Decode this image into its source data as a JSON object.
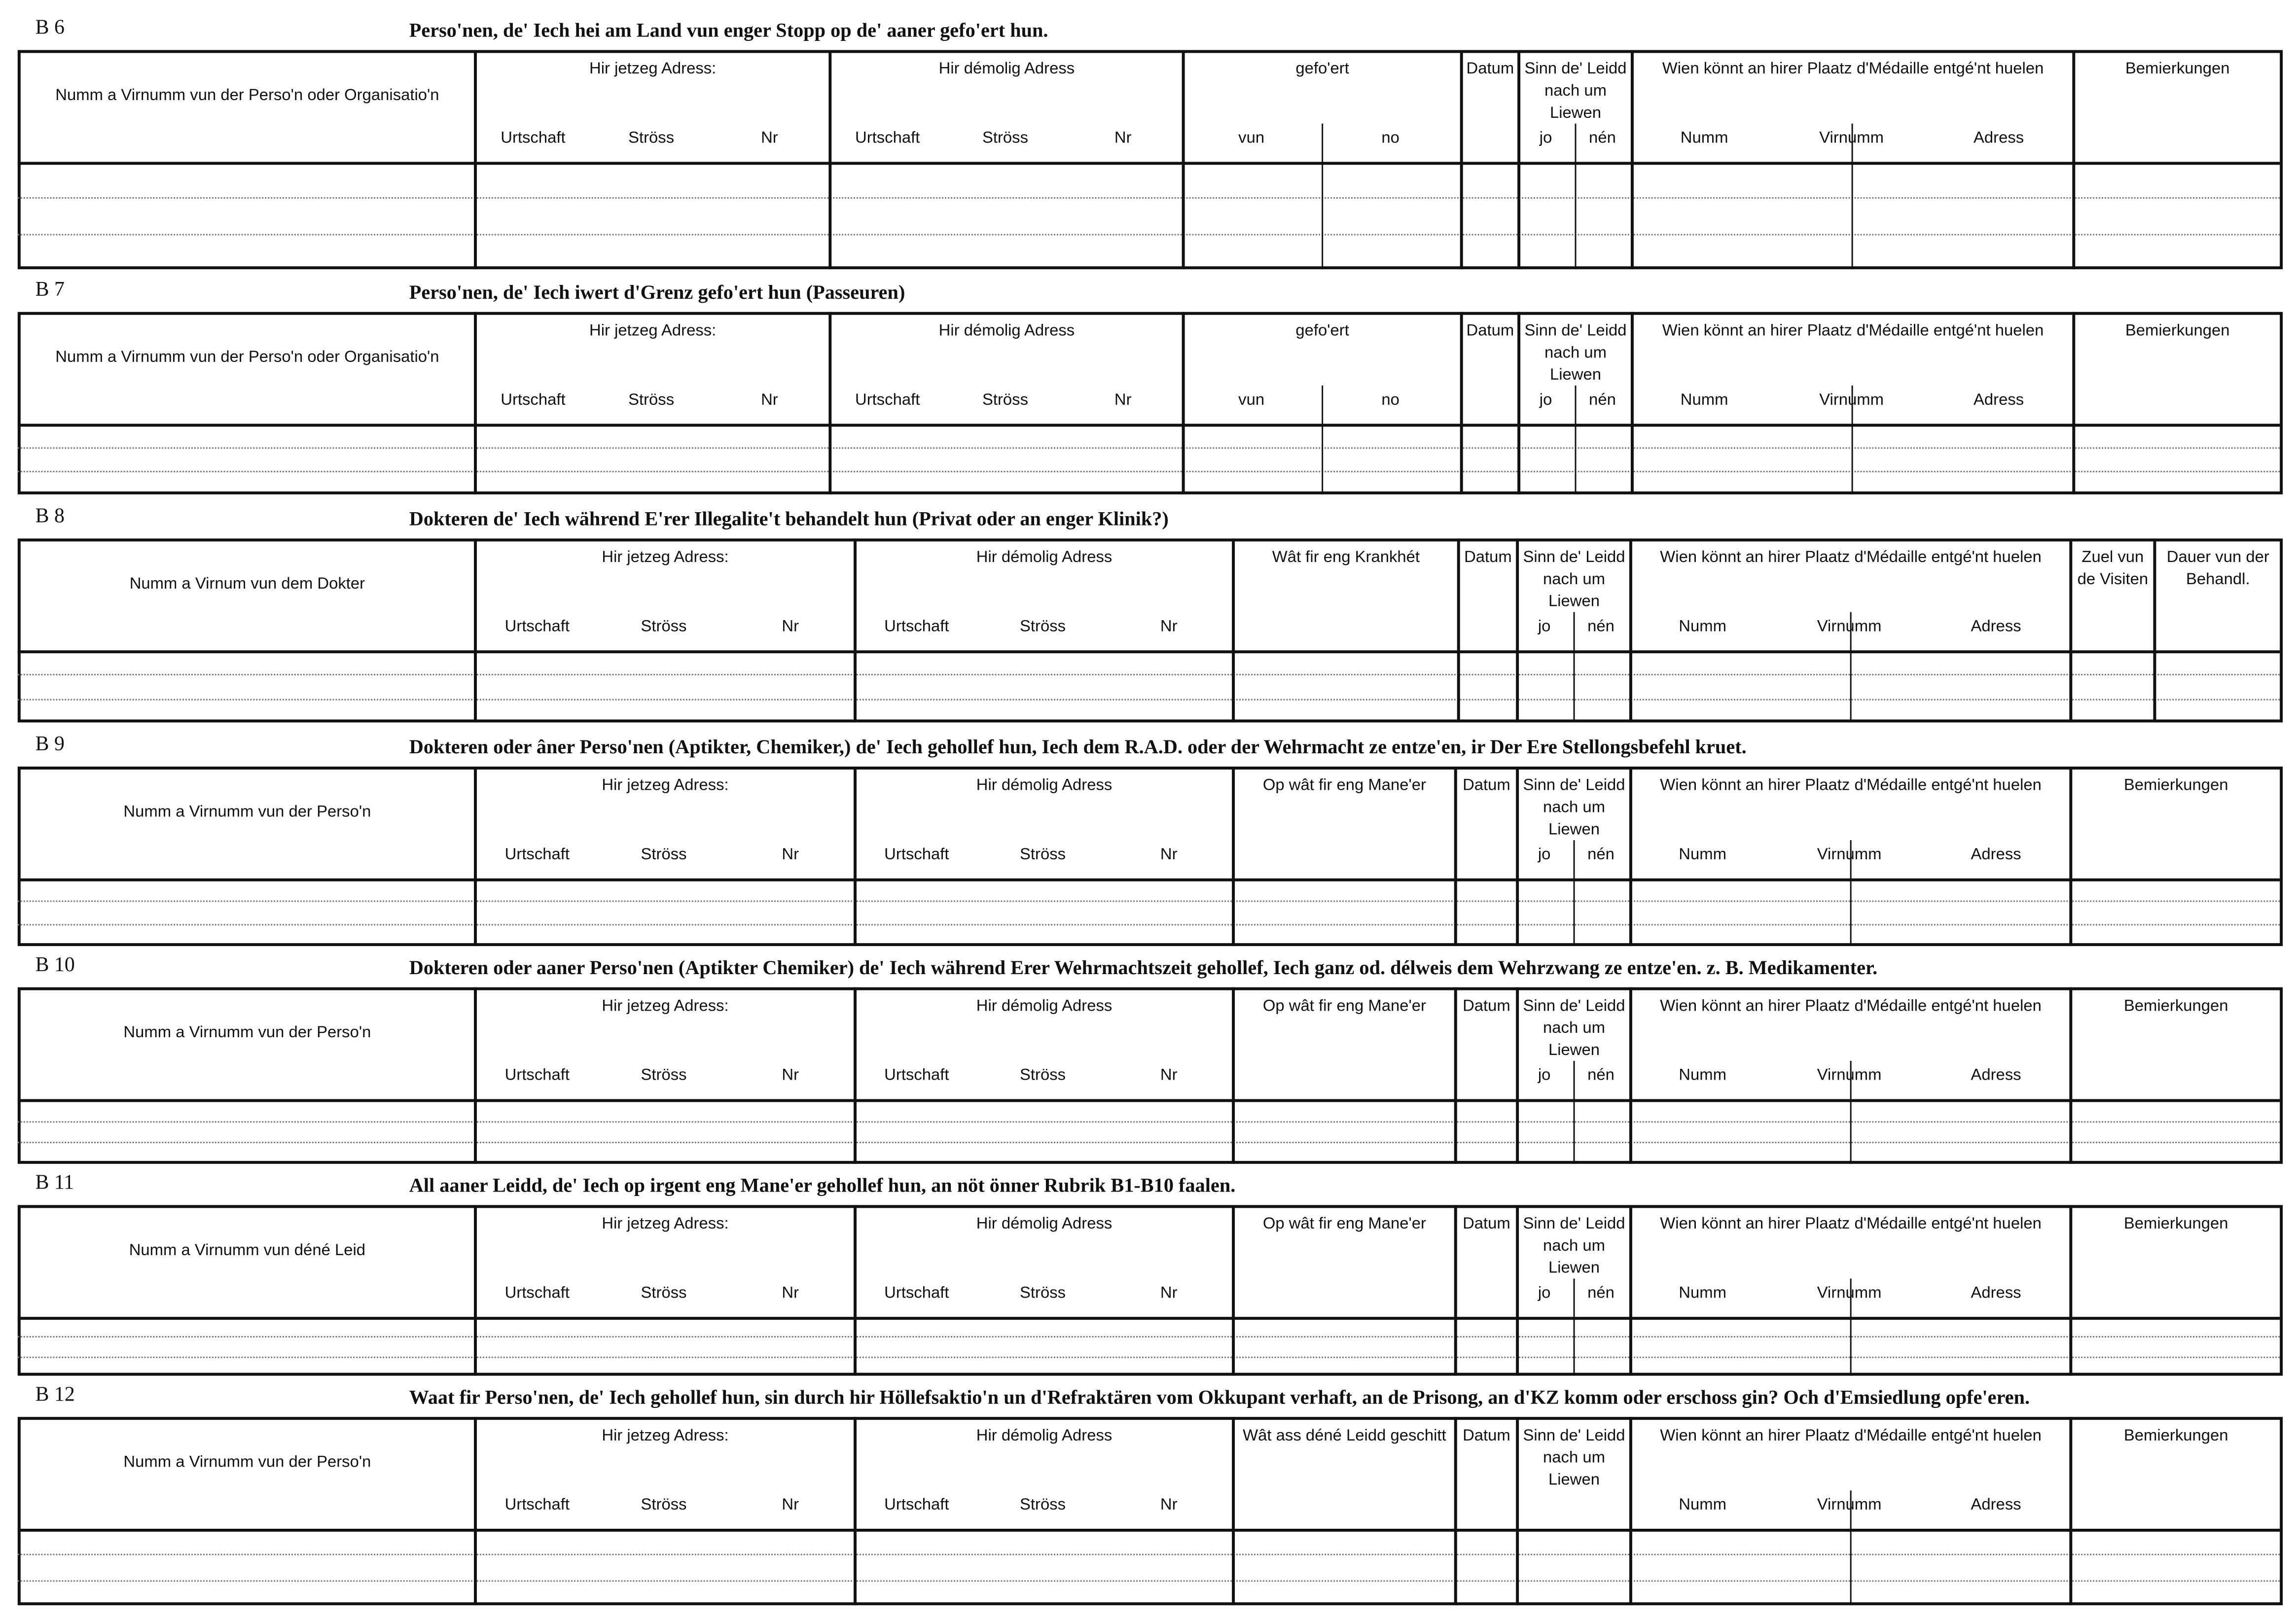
{
  "sections": [
    {
      "code": "B 6",
      "title": "Perso'nen, de' Iech hei am Land vun enger Stopp op de' aaner gefo'ert hun.",
      "columns": [
        {
          "header": "Numm a Virnumm vun der Perso'n oder Organisatio'n"
        },
        {
          "header": "Hir jetzeg Adress:",
          "subs": [
            "Urtschaft",
            "Ströss",
            "Nr"
          ]
        },
        {
          "header": "Hir démolig Adress",
          "subs": [
            "Urtschaft",
            "Ströss",
            "Nr"
          ]
        },
        {
          "header": "gefo'ert",
          "subs": [
            "vun",
            "no"
          ]
        },
        {
          "header": "Datum"
        },
        {
          "header": "Sinn de' Leidd nach um Liewen",
          "subs": [
            "jo",
            "nén"
          ]
        },
        {
          "header": "Wien könnt an hirer Plaatz d'Médaille entgé'nt huelen",
          "subs": [
            "Numm",
            "Virnumm",
            "Adress"
          ]
        },
        {
          "header": "Bemierkungen"
        }
      ]
    },
    {
      "code": "B 7",
      "title": "Perso'nen, de' Iech iwert d'Grenz gefo'ert hun (Passeuren)",
      "columns": [
        {
          "header": "Numm a Virnumm vun der Perso'n oder Organisatio'n"
        },
        {
          "header": "Hir jetzeg Adress:",
          "subs": [
            "Urtschaft",
            "Ströss",
            "Nr"
          ]
        },
        {
          "header": "Hir démolig Adress",
          "subs": [
            "Urtschaft",
            "Ströss",
            "Nr"
          ]
        },
        {
          "header": "gefo'ert",
          "subs": [
            "vun",
            "no"
          ]
        },
        {
          "header": "Datum"
        },
        {
          "header": "Sinn de' Leidd nach um Liewen",
          "subs": [
            "jo",
            "nén"
          ]
        },
        {
          "header": "Wien könnt an hirer Plaatz d'Médaille entgé'nt huelen",
          "subs": [
            "Numm",
            "Virnumm",
            "Adress"
          ]
        },
        {
          "header": "Bemierkungen"
        }
      ]
    },
    {
      "code": "B 8",
      "title": "Dokteren de' Iech während E'rer Illegalite't behandelt hun (Privat oder an enger Klinik?)",
      "columns": [
        {
          "header": "Numm a Virnum vun dem Dokter"
        },
        {
          "header": "Hir jetzeg Adress:",
          "subs": [
            "Urtschaft",
            "Ströss",
            "Nr"
          ]
        },
        {
          "header": "Hir démolig Adress",
          "subs": [
            "Urtschaft",
            "Ströss",
            "Nr"
          ]
        },
        {
          "header": "Wât fir eng Krankhét"
        },
        {
          "header": "Datum"
        },
        {
          "header": "Sinn de' Leidd nach um Liewen",
          "subs": [
            "jo",
            "nén"
          ]
        },
        {
          "header": "Wien könnt an hirer Plaatz d'Médaille entgé'nt huelen",
          "subs": [
            "Numm",
            "Virnumm",
            "Adress"
          ]
        },
        {
          "header": "Zuel vun de Visiten"
        },
        {
          "header": "Dauer vun der Behandl."
        }
      ]
    },
    {
      "code": "B 9",
      "title": "Dokteren oder âner Perso'nen (Aptikter, Chemiker,) de' Iech gehollef hun, Iech dem R.A.D. oder der Wehrmacht ze entze'en, ir Der Ere Stellongsbefehl kruet.",
      "columns": [
        {
          "header": "Numm a Virnumm vun der Perso'n"
        },
        {
          "header": "Hir jetzeg Adress:",
          "subs": [
            "Urtschaft",
            "Ströss",
            "Nr"
          ]
        },
        {
          "header": "Hir démolig Adress",
          "subs": [
            "Urtschaft",
            "Ströss",
            "Nr"
          ]
        },
        {
          "header": "Op wât fir eng Mane'er"
        },
        {
          "header": "Datum"
        },
        {
          "header": "Sinn de' Leidd nach um Liewen",
          "subs": [
            "jo",
            "nén"
          ]
        },
        {
          "header": "Wien könnt an hirer Plaatz d'Médaille entgé'nt huelen",
          "subs": [
            "Numm",
            "Virnumm",
            "Adress"
          ]
        },
        {
          "header": "Bemierkungen"
        }
      ]
    },
    {
      "code": "B 10",
      "title": "Dokteren oder aaner Perso'nen (Aptikter Chemiker) de' Iech während Erer Wehrmachtszeit gehollef, Iech ganz od. délweis dem Wehrzwang ze entze'en. z. B. Medikamenter.",
      "columns": [
        {
          "header": "Numm a Virnumm vun der Perso'n"
        },
        {
          "header": "Hir jetzeg Adress:",
          "subs": [
            "Urtschaft",
            "Ströss",
            "Nr"
          ]
        },
        {
          "header": "Hir démolig Adress",
          "subs": [
            "Urtschaft",
            "Ströss",
            "Nr"
          ]
        },
        {
          "header": "Op wât fir eng Mane'er"
        },
        {
          "header": "Datum"
        },
        {
          "header": "Sinn de' Leidd nach um Liewen",
          "subs": [
            "jo",
            "nén"
          ]
        },
        {
          "header": "Wien könnt an hirer Plaatz d'Médaille entgé'nt huelen",
          "subs": [
            "Numm",
            "Virnumm",
            "Adress"
          ]
        },
        {
          "header": "Bemierkungen"
        }
      ]
    },
    {
      "code": "B 11",
      "title": "All aaner Leidd, de' Iech op irgent eng Mane'er gehollef hun, an nöt önner Rubrik B1-B10 faalen.",
      "columns": [
        {
          "header": "Numm a Virnumm vun déné Leid"
        },
        {
          "header": "Hir jetzeg Adress:",
          "subs": [
            "Urtschaft",
            "Ströss",
            "Nr"
          ]
        },
        {
          "header": "Hir démolig Adress",
          "subs": [
            "Urtschaft",
            "Ströss",
            "Nr"
          ]
        },
        {
          "header": "Op wât fir eng Mane'er"
        },
        {
          "header": "Datum"
        },
        {
          "header": "Sinn de' Leidd nach um Liewen",
          "subs": [
            "jo",
            "nén"
          ]
        },
        {
          "header": "Wien könnt an hirer Plaatz d'Médaille entgé'nt huelen",
          "subs": [
            "Numm",
            "Virnumm",
            "Adress"
          ]
        },
        {
          "header": "Bemierkungen"
        }
      ]
    },
    {
      "code": "B 12",
      "title": "Waat fir Perso'nen, de' Iech gehollef hun, sin durch hir Höllefsaktio'n un d'Refraktären vom Okkupant verhaft, an de Prisong, an d'KZ komm oder erschoss gin? Och d'Emsiedlung opfe'eren.",
      "columns": [
        {
          "header": "Numm a Virnumm vun der Perso'n"
        },
        {
          "header": "Hir jetzeg Adress:",
          "subs": [
            "Urtschaft",
            "Ströss",
            "Nr"
          ]
        },
        {
          "header": "Hir démolig Adress",
          "subs": [
            "Urtschaft",
            "Ströss",
            "Nr"
          ]
        },
        {
          "header": "Wât ass déné Leidd geschitt"
        },
        {
          "header": "Datum"
        },
        {
          "header": "Sinn de' Leidd nach um Liewen"
        },
        {
          "header": "Wien könnt an hirer Plaatz d'Médaille entgé'nt huelen",
          "subs": [
            "Numm",
            "Virnumm",
            "Adress"
          ]
        },
        {
          "header": "Bemierkungen"
        }
      ]
    }
  ]
}
